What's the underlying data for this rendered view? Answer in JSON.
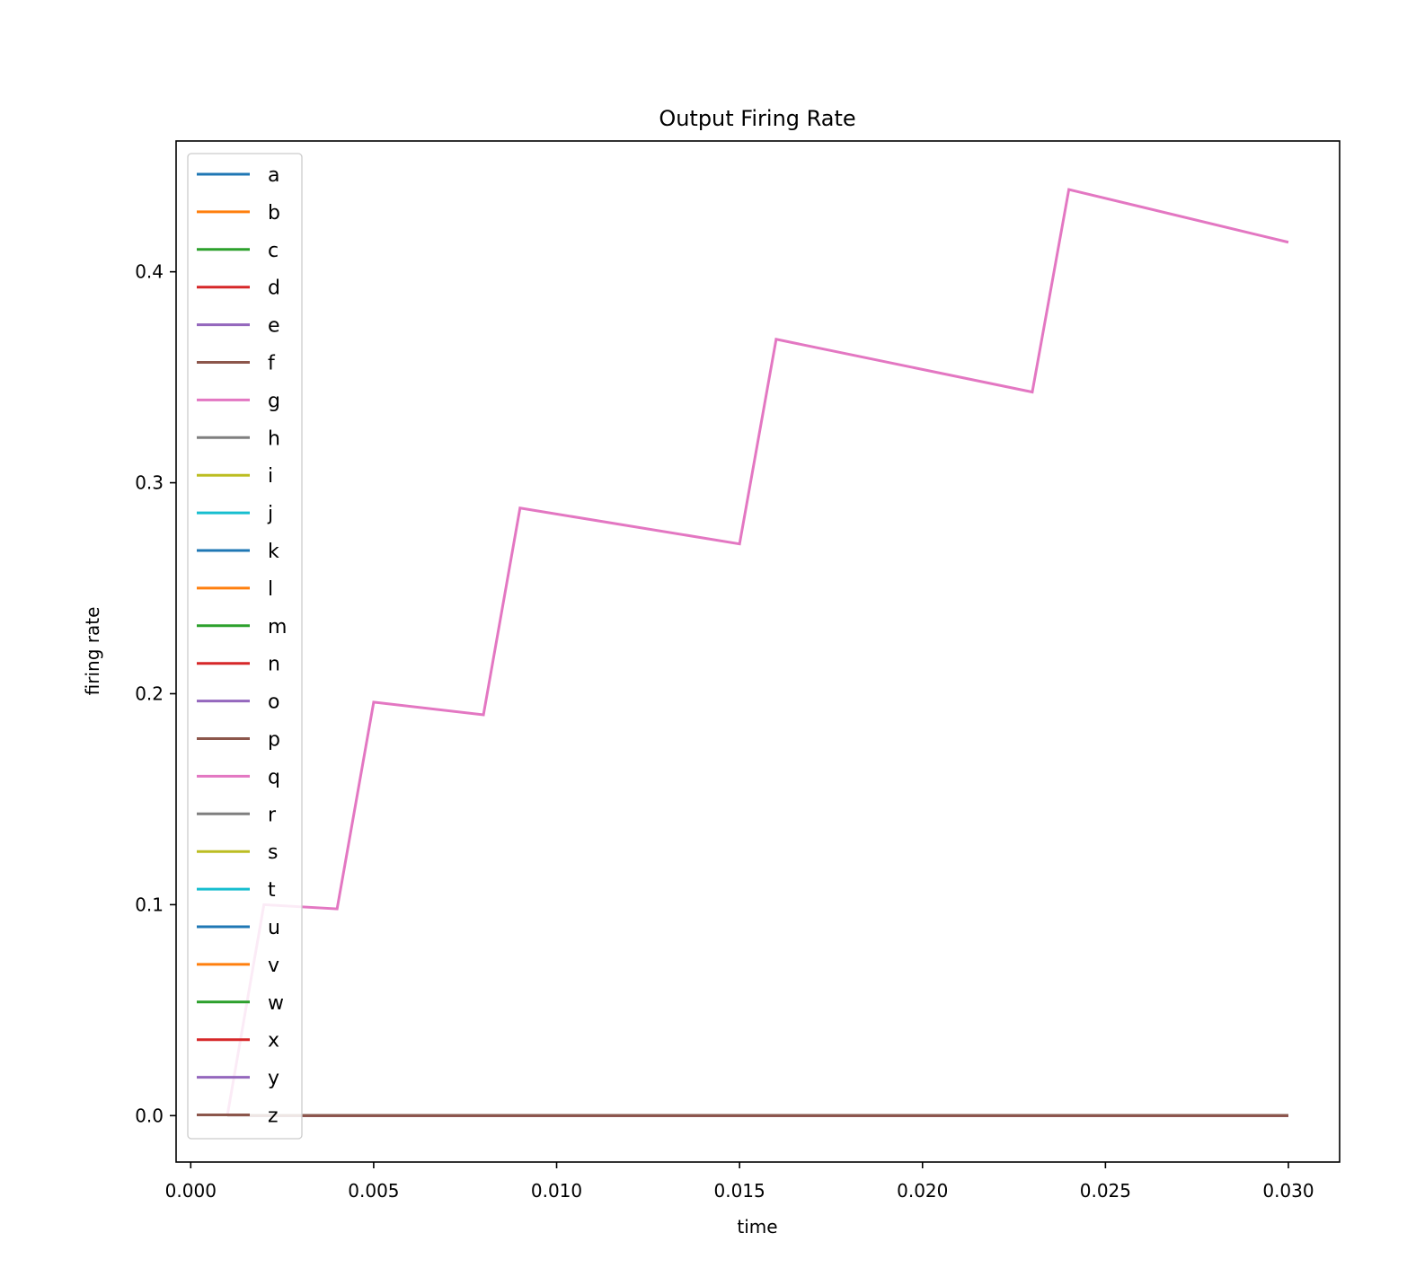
{
  "chart_data": {
    "type": "line",
    "title": "Output Firing Rate",
    "xlabel": "time",
    "ylabel": "firing rate",
    "xlim": [
      -0.0004,
      0.0314
    ],
    "ylim": [
      -0.022,
      0.462
    ],
    "xticks": [
      "0.000",
      "0.005",
      "0.010",
      "0.015",
      "0.020",
      "0.025",
      "0.030"
    ],
    "yticks": [
      "0.0",
      "0.1",
      "0.2",
      "0.3",
      "0.4"
    ],
    "grid": false,
    "legend_position": "upper-left",
    "series": [
      {
        "name": "a",
        "color": "#1f77b4",
        "x": [
          0.001,
          0.03
        ],
        "y": [
          0,
          0
        ]
      },
      {
        "name": "b",
        "color": "#ff7f0e",
        "x": [
          0.001,
          0.03
        ],
        "y": [
          0,
          0
        ]
      },
      {
        "name": "c",
        "color": "#2ca02c",
        "x": [
          0.001,
          0.03
        ],
        "y": [
          0,
          0
        ]
      },
      {
        "name": "d",
        "color": "#d62728",
        "x": [
          0.001,
          0.03
        ],
        "y": [
          0,
          0
        ]
      },
      {
        "name": "e",
        "color": "#9467bd",
        "x": [
          0.001,
          0.03
        ],
        "y": [
          0,
          0
        ]
      },
      {
        "name": "f",
        "color": "#8c564b",
        "x": [
          0.001,
          0.03
        ],
        "y": [
          0,
          0
        ]
      },
      {
        "name": "g",
        "color": "#e377c2",
        "x": [
          0.001,
          0.002,
          0.004,
          0.005,
          0.008,
          0.009,
          0.015,
          0.016,
          0.023,
          0.024,
          0.03
        ],
        "y": [
          0.0,
          0.1,
          0.098,
          0.196,
          0.19,
          0.288,
          0.271,
          0.368,
          0.343,
          0.439,
          0.414
        ]
      },
      {
        "name": "h",
        "color": "#7f7f7f",
        "x": [
          0.001,
          0.03
        ],
        "y": [
          0,
          0
        ]
      },
      {
        "name": "i",
        "color": "#bcbd22",
        "x": [
          0.001,
          0.03
        ],
        "y": [
          0,
          0
        ]
      },
      {
        "name": "j",
        "color": "#17becf",
        "x": [
          0.001,
          0.03
        ],
        "y": [
          0,
          0
        ]
      },
      {
        "name": "k",
        "color": "#1f77b4",
        "x": [
          0.001,
          0.03
        ],
        "y": [
          0,
          0
        ]
      },
      {
        "name": "l",
        "color": "#ff7f0e",
        "x": [
          0.001,
          0.03
        ],
        "y": [
          0,
          0
        ]
      },
      {
        "name": "m",
        "color": "#2ca02c",
        "x": [
          0.001,
          0.03
        ],
        "y": [
          0,
          0
        ]
      },
      {
        "name": "n",
        "color": "#d62728",
        "x": [
          0.001,
          0.03
        ],
        "y": [
          0,
          0
        ]
      },
      {
        "name": "o",
        "color": "#9467bd",
        "x": [
          0.001,
          0.03
        ],
        "y": [
          0,
          0
        ]
      },
      {
        "name": "p",
        "color": "#8c564b",
        "x": [
          0.001,
          0.03
        ],
        "y": [
          0,
          0
        ]
      },
      {
        "name": "q",
        "color": "#e377c2",
        "x": [
          0.001,
          0.03
        ],
        "y": [
          0,
          0
        ]
      },
      {
        "name": "r",
        "color": "#7f7f7f",
        "x": [
          0.001,
          0.03
        ],
        "y": [
          0,
          0
        ]
      },
      {
        "name": "s",
        "color": "#bcbd22",
        "x": [
          0.001,
          0.03
        ],
        "y": [
          0,
          0
        ]
      },
      {
        "name": "t",
        "color": "#17becf",
        "x": [
          0.001,
          0.03
        ],
        "y": [
          0,
          0
        ]
      },
      {
        "name": "u",
        "color": "#1f77b4",
        "x": [
          0.001,
          0.03
        ],
        "y": [
          0,
          0
        ]
      },
      {
        "name": "v",
        "color": "#ff7f0e",
        "x": [
          0.001,
          0.03
        ],
        "y": [
          0,
          0
        ]
      },
      {
        "name": "w",
        "color": "#2ca02c",
        "x": [
          0.001,
          0.03
        ],
        "y": [
          0,
          0
        ]
      },
      {
        "name": "x",
        "color": "#d62728",
        "x": [
          0.001,
          0.03
        ],
        "y": [
          0,
          0
        ]
      },
      {
        "name": "y",
        "color": "#9467bd",
        "x": [
          0.001,
          0.03
        ],
        "y": [
          0,
          0
        ]
      },
      {
        "name": "z",
        "color": "#8c564b",
        "x": [
          0.001,
          0.03
        ],
        "y": [
          0,
          0
        ]
      }
    ]
  }
}
